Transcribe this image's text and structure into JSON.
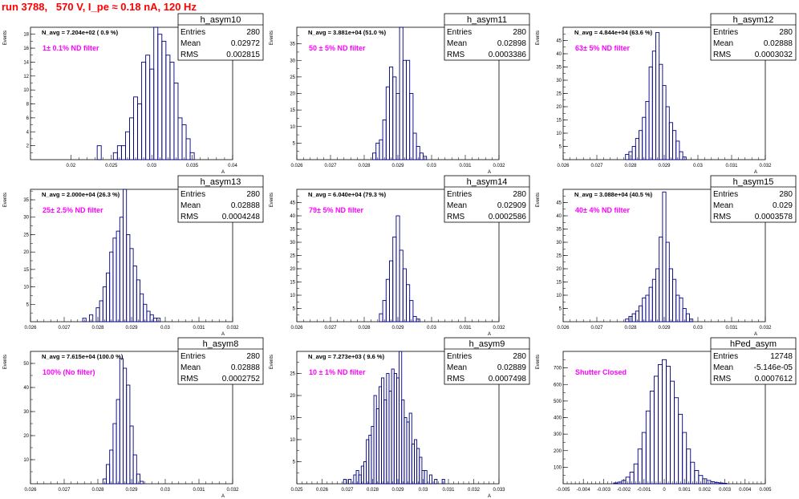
{
  "title": "run 3788,   570 V, I_pe ≈ 0.18 nA, 120 Hz",
  "colors": {
    "title": "#ff0000",
    "hist": "#000080",
    "filter_label": "#ff00ff"
  },
  "chart_data": [
    {
      "type": "histogram",
      "name": "h_asym10",
      "nav_label": "N_avg = 7.204e+02 ( 0.9 %)",
      "filter_label": "1± 0.1% ND filter",
      "stats": {
        "Entries": "280",
        "Mean": "0.02972",
        "RMS": "0.002815"
      },
      "ylabel": "Events",
      "xlabel": "A",
      "xlim": [
        0.015,
        0.04
      ],
      "ylim": [
        0,
        19
      ],
      "xticks": [
        "0.02",
        "0.025",
        "0.03",
        "0.035",
        "0.04"
      ],
      "yticks": [
        "2",
        "4",
        "6",
        "8",
        "10",
        "12",
        "14",
        "16",
        "18"
      ],
      "x": [
        0.0235,
        0.0255,
        0.026,
        0.0265,
        0.027,
        0.0275,
        0.028,
        0.0285,
        0.029,
        0.0295,
        0.03,
        0.0305,
        0.031,
        0.0315,
        0.032,
        0.0325,
        0.033,
        0.0335,
        0.034,
        0.0345,
        0.035
      ],
      "values": [
        2,
        1,
        2,
        2,
        4,
        6,
        9,
        8,
        14,
        15,
        13,
        19,
        18,
        17,
        15,
        14,
        11,
        6,
        5,
        3,
        1
      ]
    },
    {
      "type": "histogram",
      "name": "h_asym11",
      "nav_label": "N_avg = 3.881e+04 (51.0 %)",
      "filter_label": "50 ± 5% ND filter",
      "stats": {
        "Entries": "280",
        "Mean": "0.02898",
        "RMS": "0.0003386"
      },
      "ylabel": "Events",
      "xlabel": "A",
      "xlim": [
        0.026,
        0.032
      ],
      "ylim": [
        0,
        40
      ],
      "xticks": [
        "0.026",
        "0.027",
        "0.028",
        "0.029",
        "0.03",
        "0.031",
        "0.032"
      ],
      "yticks": [
        "5",
        "10",
        "15",
        "20",
        "25",
        "30",
        "35"
      ],
      "x": [
        0.0283,
        0.0284,
        0.0285,
        0.0286,
        0.0287,
        0.0288,
        0.0289,
        0.029,
        0.0291,
        0.0292,
        0.0293,
        0.0294,
        0.0295,
        0.0296,
        0.0297,
        0.0298
      ],
      "values": [
        2,
        5,
        6,
        12,
        22,
        28,
        25,
        20,
        41,
        30,
        30,
        20,
        8,
        4,
        2,
        1
      ]
    },
    {
      "type": "histogram",
      "name": "h_asym12",
      "nav_label": "N_avg = 4.844e+04 (63.6 %)",
      "filter_label": "63± 5% ND filter",
      "stats": {
        "Entries": "280",
        "Mean": "0.02888",
        "RMS": "0.0003032"
      },
      "ylabel": "Events",
      "xlabel": "A",
      "xlim": [
        0.026,
        0.032
      ],
      "ylim": [
        0,
        50
      ],
      "xticks": [
        "0.026",
        "0.027",
        "0.028",
        "0.029",
        "0.03",
        "0.031",
        "0.032"
      ],
      "yticks": [
        "5",
        "10",
        "15",
        "20",
        "25",
        "30",
        "35",
        "40",
        "45"
      ],
      "x": [
        0.0279,
        0.028,
        0.0281,
        0.0282,
        0.0283,
        0.0284,
        0.0285,
        0.0286,
        0.0287,
        0.0288,
        0.0289,
        0.029,
        0.0291,
        0.0292,
        0.0293,
        0.0294,
        0.0295,
        0.0296
      ],
      "values": [
        2,
        3,
        5,
        8,
        11,
        16,
        22,
        35,
        41,
        48,
        36,
        28,
        20,
        14,
        11,
        7,
        3,
        1
      ]
    },
    {
      "type": "histogram",
      "name": "h_asym13",
      "nav_label": "N_avg = 2.000e+04 (26.3 %)",
      "filter_label": "25± 2.5% ND filter",
      "stats": {
        "Entries": "280",
        "Mean": "0.02888",
        "RMS": "0.0004248"
      },
      "ylabel": "Events",
      "xlabel": "A",
      "xlim": [
        0.026,
        0.032
      ],
      "ylim": [
        0,
        38
      ],
      "xticks": [
        "0.026",
        "0.027",
        "0.028",
        "0.029",
        "0.03",
        "0.031",
        "0.032"
      ],
      "yticks": [
        "5",
        "10",
        "15",
        "20",
        "25",
        "30",
        "35"
      ],
      "x": [
        0.0276,
        0.0278,
        0.028,
        0.0281,
        0.0282,
        0.0283,
        0.0284,
        0.0285,
        0.0286,
        0.0287,
        0.0288,
        0.0289,
        0.029,
        0.0291,
        0.0292,
        0.0293,
        0.0294,
        0.0295,
        0.0296,
        0.0297,
        0.0298
      ],
      "values": [
        1,
        2,
        4,
        6,
        10,
        14,
        20,
        24,
        26,
        30,
        38,
        25,
        21,
        16,
        12,
        8,
        5,
        3,
        2,
        1,
        1
      ]
    },
    {
      "type": "histogram",
      "name": "h_asym14",
      "nav_label": "N_avg = 6.040e+04 (79.3 %)",
      "filter_label": "79± 5% ND filter",
      "stats": {
        "Entries": "280",
        "Mean": "0.02909",
        "RMS": "0.0002586"
      },
      "ylabel": "Events",
      "xlabel": "A",
      "xlim": [
        0.026,
        0.032
      ],
      "ylim": [
        0,
        50
      ],
      "xticks": [
        "0.026",
        "0.027",
        "0.028",
        "0.029",
        "0.03",
        "0.031",
        "0.032"
      ],
      "yticks": [
        "5",
        "10",
        "15",
        "20",
        "25",
        "30",
        "35",
        "40",
        "45"
      ],
      "x": [
        0.0285,
        0.0286,
        0.0287,
        0.0288,
        0.0289,
        0.029,
        0.0291,
        0.0292,
        0.0293,
        0.0294,
        0.0295,
        0.0296
      ],
      "values": [
        3,
        8,
        16,
        23,
        32,
        40,
        27,
        20,
        14,
        8,
        2,
        1
      ]
    },
    {
      "type": "histogram",
      "name": "h_asym15",
      "nav_label": "N_avg = 3.088e+04 (40.5 %)",
      "filter_label": "40± 4% ND filter",
      "stats": {
        "Entries": "280",
        "Mean": "0.029",
        "RMS": "0.0003578"
      },
      "ylabel": "Events",
      "xlabel": "A",
      "xlim": [
        0.026,
        0.032
      ],
      "ylim": [
        0,
        50
      ],
      "xticks": [
        "0.026",
        "0.027",
        "0.028",
        "0.029",
        "0.03",
        "0.031",
        "0.032"
      ],
      "yticks": [
        "5",
        "10",
        "15",
        "20",
        "25",
        "30",
        "35",
        "40",
        "45"
      ],
      "x": [
        0.0279,
        0.028,
        0.0281,
        0.0282,
        0.0283,
        0.0284,
        0.0285,
        0.0286,
        0.0287,
        0.0288,
        0.0289,
        0.029,
        0.0291,
        0.0292,
        0.0293,
        0.0294,
        0.0295,
        0.0296,
        0.0297,
        0.0298
      ],
      "values": [
        1,
        2,
        3,
        4,
        6,
        9,
        10,
        13,
        16,
        20,
        32,
        49,
        30,
        20,
        16,
        10,
        9,
        5,
        3,
        1
      ]
    },
    {
      "type": "histogram",
      "name": "h_asym8",
      "nav_label": "N_avg = 7.615e+04 (100.0 %)",
      "filter_label": "100% (No filter)",
      "stats": {
        "Entries": "280",
        "Mean": "0.02888",
        "RMS": "0.0002752"
      },
      "ylabel": "Events",
      "xlabel": "A",
      "xlim": [
        0.026,
        0.032
      ],
      "ylim": [
        0,
        55
      ],
      "xticks": [
        "0.026",
        "0.027",
        "0.028",
        "0.029",
        "0.03",
        "0.031",
        "0.032"
      ],
      "yticks": [
        "10",
        "20",
        "30",
        "40",
        "50"
      ],
      "x": [
        0.0282,
        0.0283,
        0.0284,
        0.0285,
        0.0286,
        0.0287,
        0.0288,
        0.0289,
        0.029,
        0.0291,
        0.0292,
        0.0293
      ],
      "values": [
        2,
        8,
        14,
        25,
        35,
        52,
        48,
        41,
        24,
        12,
        4,
        1
      ]
    },
    {
      "type": "histogram",
      "name": "h_asym9",
      "nav_label": "N_avg = 7.273e+03 ( 9.6 %)",
      "filter_label": "10 ± 1% ND filter",
      "stats": {
        "Entries": "280",
        "Mean": "0.02889",
        "RMS": "0.0007498"
      },
      "ylabel": "Events",
      "xlabel": "A",
      "xlim": [
        0.025,
        0.033
      ],
      "ylim": [
        0,
        30
      ],
      "xticks": [
        "0.025",
        "0.026",
        "0.027",
        "0.028",
        "0.029",
        "0.03",
        "0.031",
        "0.032",
        "0.033"
      ],
      "yticks": [
        "5",
        "10",
        "15",
        "20",
        "25"
      ],
      "x": [
        0.0269,
        0.0271,
        0.0273,
        0.0274,
        0.0275,
        0.0276,
        0.0277,
        0.0278,
        0.0279,
        0.028,
        0.0281,
        0.0282,
        0.0283,
        0.0284,
        0.0285,
        0.0286,
        0.0287,
        0.0288,
        0.0289,
        0.029,
        0.0291,
        0.0292,
        0.0293,
        0.0294,
        0.0295,
        0.0296,
        0.0297,
        0.0298,
        0.0299,
        0.03,
        0.0301,
        0.0303,
        0.0305,
        0.0308
      ],
      "values": [
        1,
        1,
        2,
        3,
        2,
        4,
        5,
        10,
        11,
        13,
        20,
        17,
        22,
        24,
        19,
        25,
        21,
        26,
        25,
        24,
        30,
        19,
        15,
        14,
        16,
        9,
        10,
        8,
        6,
        3,
        3,
        2,
        1,
        1
      ]
    },
    {
      "type": "histogram",
      "name": "hPed_asym",
      "nav_label": "",
      "filter_label": "Shutter Closed",
      "stats": {
        "Entries": "12748",
        "Mean": "-5.146e-05",
        "RMS": "0.0007612"
      },
      "ylabel": "Events",
      "xlabel": "",
      "xlim": [
        -0.005,
        0.005
      ],
      "ylim": [
        0,
        800
      ],
      "xticks": [
        "-0.005",
        "-0.004",
        "-0.003",
        "-0.002",
        "-0.001",
        "0",
        "0.001",
        "0.002",
        "0.003",
        "0.004",
        "0.005"
      ],
      "yticks": [
        "100",
        "200",
        "300",
        "400",
        "500",
        "600",
        "700"
      ],
      "x": [
        -0.0024,
        -0.0022,
        -0.002,
        -0.0018,
        -0.0016,
        -0.0014,
        -0.0012,
        -0.001,
        -0.0008,
        -0.0006,
        -0.0004,
        -0.0002,
        0.0,
        0.0002,
        0.0004,
        0.0006,
        0.0008,
        0.001,
        0.0012,
        0.0014,
        0.0016,
        0.0018,
        0.002,
        0.0022,
        0.0024,
        0.0026,
        0.0028,
        0.003
      ],
      "values": [
        5,
        10,
        20,
        40,
        70,
        120,
        210,
        310,
        440,
        560,
        650,
        720,
        750,
        710,
        620,
        520,
        420,
        310,
        210,
        130,
        80,
        50,
        30,
        20,
        12,
        8,
        5,
        3
      ]
    }
  ]
}
